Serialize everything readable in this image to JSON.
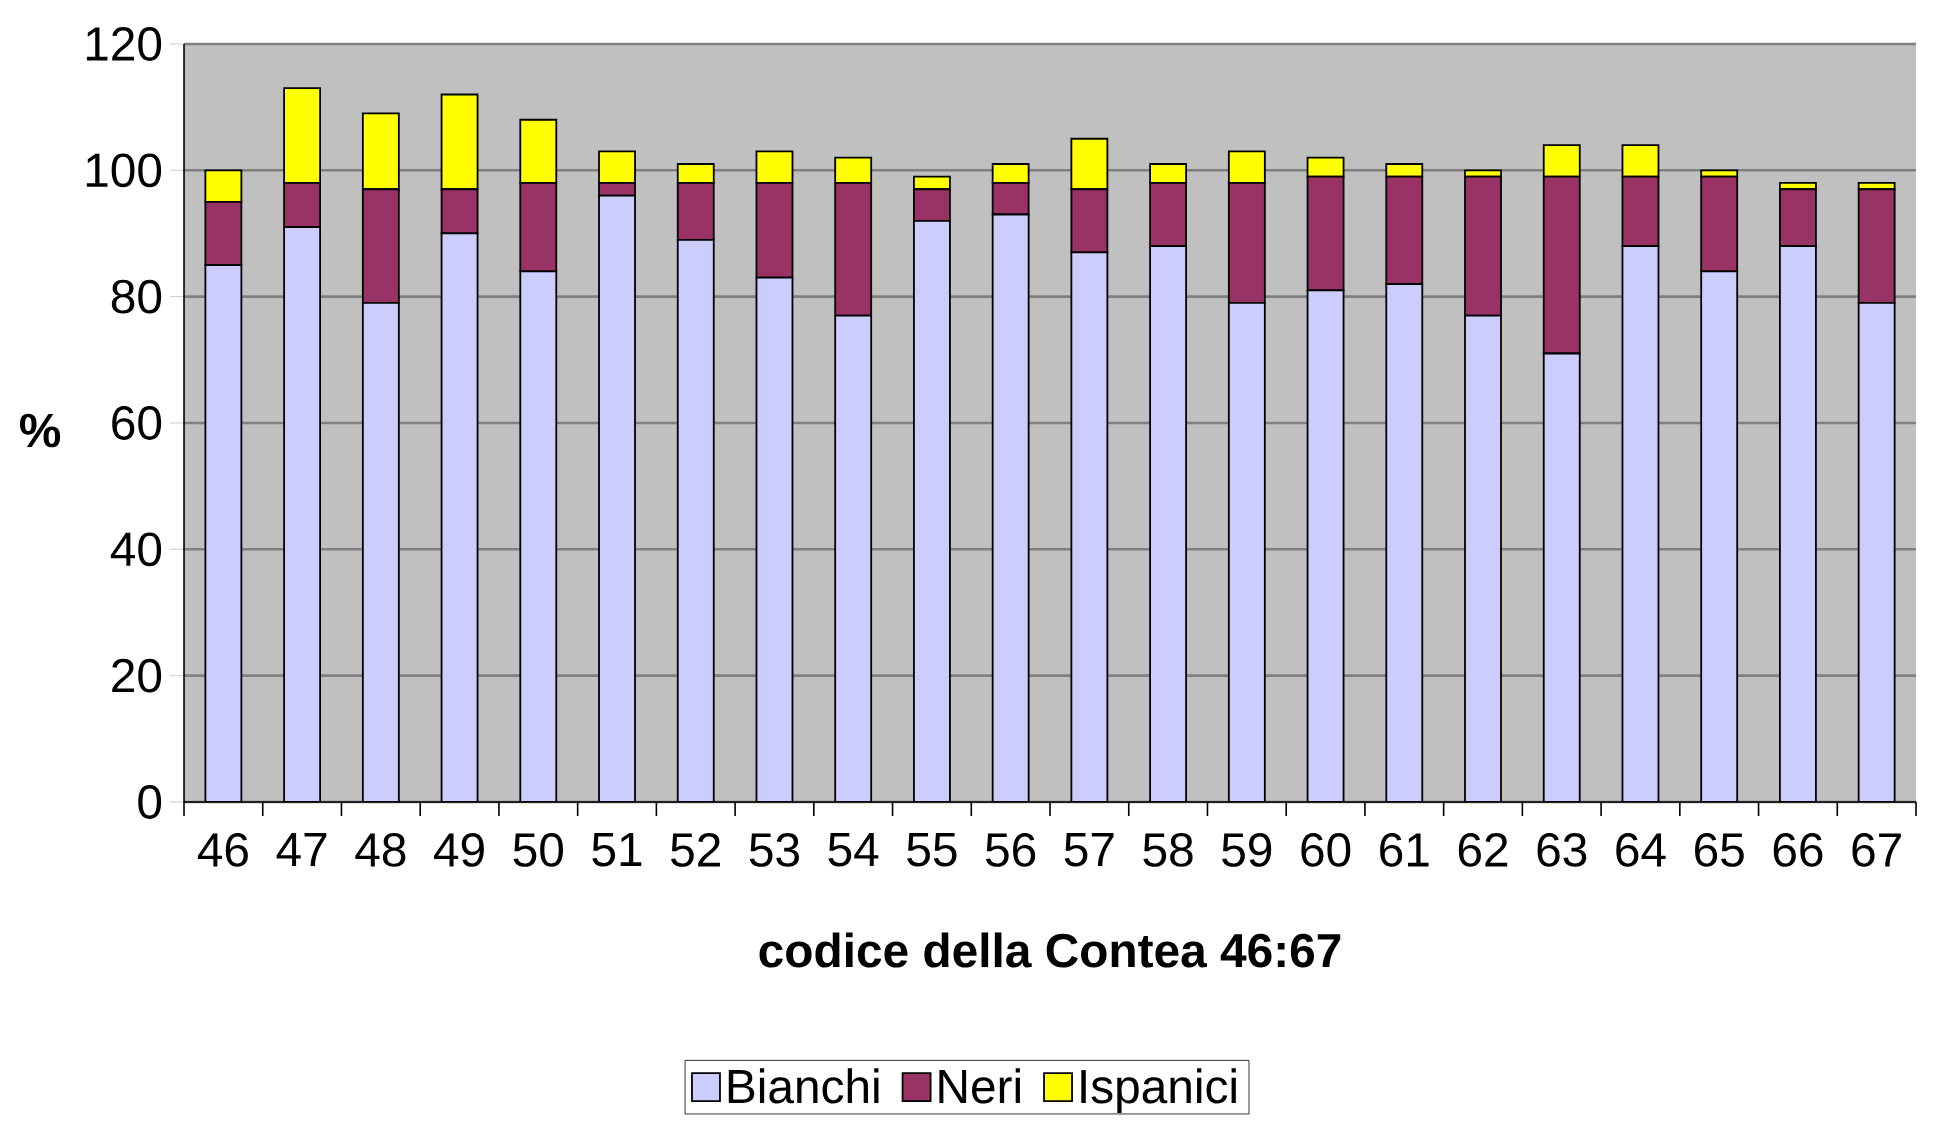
{
  "chart_data": {
    "type": "bar",
    "stacked": true,
    "xlabel": "codice della Contea 46:67",
    "ylabel": "%",
    "categories": [
      "46",
      "47",
      "48",
      "49",
      "50",
      "51",
      "52",
      "53",
      "54",
      "55",
      "56",
      "57",
      "58",
      "59",
      "60",
      "61",
      "62",
      "63",
      "64",
      "65",
      "66",
      "67"
    ],
    "series": [
      {
        "name": "Bianchi",
        "color": "#ccccff",
        "values": [
          85,
          91,
          79,
          90,
          84,
          96,
          89,
          83,
          77,
          92,
          93,
          87,
          88,
          79,
          81,
          82,
          77,
          71,
          88,
          84,
          88,
          79
        ]
      },
      {
        "name": "Neri",
        "color": "#993366",
        "values": [
          10,
          7,
          18,
          7,
          14,
          2,
          9,
          15,
          21,
          5,
          5,
          10,
          10,
          19,
          18,
          17,
          22,
          28,
          11,
          15,
          9,
          18
        ]
      },
      {
        "name": "Ispanici",
        "color": "#ffff00",
        "values": [
          5,
          15,
          12,
          15,
          10,
          5,
          3,
          5,
          4,
          2,
          3,
          8,
          3,
          5,
          3,
          2,
          1,
          5,
          5,
          1,
          1,
          1
        ]
      }
    ],
    "ylim": [
      0,
      120
    ],
    "yticks": [
      0,
      20,
      40,
      60,
      80,
      100,
      120
    ],
    "grid": "y",
    "legend": "bottom"
  }
}
